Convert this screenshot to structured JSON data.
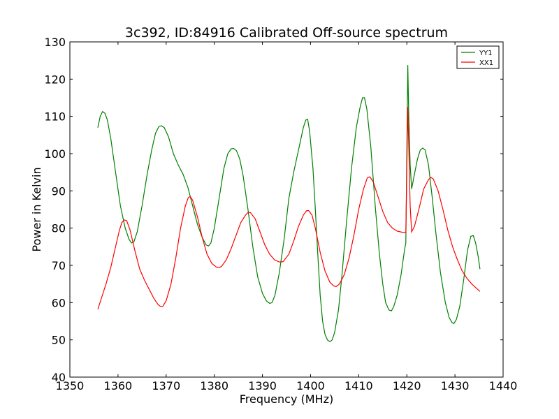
{
  "chart_data": {
    "type": "line",
    "title": "3c392, ID:84916 Calibrated Off-source spectrum",
    "xlabel": "Frequency (MHz)",
    "ylabel": "Power in Kelvin",
    "xlim": [
      1350,
      1440
    ],
    "ylim": [
      40,
      130
    ],
    "xticks": [
      1350,
      1360,
      1370,
      1380,
      1390,
      1400,
      1410,
      1420,
      1430,
      1440
    ],
    "yticks": [
      40,
      50,
      60,
      70,
      80,
      90,
      100,
      110,
      120,
      130
    ],
    "grid": false,
    "legend_position": "top-right",
    "series": [
      {
        "name": "YY1",
        "color": "#008000",
        "points": [
          [
            1355.8,
            107
          ],
          [
            1356.3,
            110
          ],
          [
            1356.8,
            111.3
          ],
          [
            1357.3,
            110.8
          ],
          [
            1357.8,
            109
          ],
          [
            1358.5,
            104
          ],
          [
            1359.5,
            95
          ],
          [
            1360.5,
            86
          ],
          [
            1361.5,
            80
          ],
          [
            1362.3,
            77
          ],
          [
            1362.8,
            76
          ],
          [
            1363.3,
            76.3
          ],
          [
            1364,
            79
          ],
          [
            1365,
            86
          ],
          [
            1366,
            94
          ],
          [
            1367,
            101
          ],
          [
            1367.8,
            105.5
          ],
          [
            1368.5,
            107.3
          ],
          [
            1369,
            107.5
          ],
          [
            1369.6,
            107
          ],
          [
            1370.5,
            104.5
          ],
          [
            1371.5,
            100
          ],
          [
            1372.5,
            97
          ],
          [
            1373.5,
            94.5
          ],
          [
            1374.5,
            91
          ],
          [
            1375.5,
            86
          ],
          [
            1376.5,
            81
          ],
          [
            1377.5,
            77.5
          ],
          [
            1378.3,
            75.5
          ],
          [
            1378.8,
            75.2
          ],
          [
            1379.3,
            76
          ],
          [
            1380,
            80
          ],
          [
            1381,
            88
          ],
          [
            1382,
            96
          ],
          [
            1382.8,
            100
          ],
          [
            1383.5,
            101.3
          ],
          [
            1384,
            101.4
          ],
          [
            1384.6,
            100.8
          ],
          [
            1385.3,
            98.5
          ],
          [
            1386,
            94
          ],
          [
            1387,
            85
          ],
          [
            1388,
            75
          ],
          [
            1389,
            67
          ],
          [
            1390,
            62.5
          ],
          [
            1390.8,
            60.5
          ],
          [
            1391.5,
            59.8
          ],
          [
            1392,
            60
          ],
          [
            1392.6,
            62
          ],
          [
            1393.5,
            68
          ],
          [
            1394.5,
            77
          ],
          [
            1395.5,
            88
          ],
          [
            1396.5,
            95
          ],
          [
            1397.5,
            101
          ],
          [
            1398.5,
            107
          ],
          [
            1399,
            109
          ],
          [
            1399.4,
            109.2
          ],
          [
            1399.8,
            106
          ],
          [
            1400.5,
            96
          ],
          [
            1401,
            85
          ],
          [
            1401.5,
            73
          ],
          [
            1402,
            62
          ],
          [
            1402.5,
            55
          ],
          [
            1403,
            51.5
          ],
          [
            1403.5,
            50
          ],
          [
            1404,
            49.5
          ],
          [
            1404.5,
            50
          ],
          [
            1405,
            52
          ],
          [
            1405.8,
            58
          ],
          [
            1406.5,
            67
          ],
          [
            1407.5,
            82
          ],
          [
            1408.5,
            96
          ],
          [
            1409.5,
            107
          ],
          [
            1410.3,
            112.5
          ],
          [
            1410.8,
            115
          ],
          [
            1411.2,
            115
          ],
          [
            1411.7,
            112
          ],
          [
            1412.5,
            102
          ],
          [
            1413.5,
            85
          ],
          [
            1414.3,
            73
          ],
          [
            1415,
            65
          ],
          [
            1415.6,
            60
          ],
          [
            1416.3,
            58
          ],
          [
            1416.8,
            57.8
          ],
          [
            1417.3,
            59
          ],
          [
            1418,
            62
          ],
          [
            1418.8,
            67.5
          ],
          [
            1419.5,
            74
          ],
          [
            1419.8,
            76
          ],
          [
            1420,
            100
          ],
          [
            1420.2,
            123.8
          ],
          [
            1420.4,
            110
          ],
          [
            1420.7,
            97
          ],
          [
            1421,
            90.5
          ],
          [
            1421.5,
            94
          ],
          [
            1422.2,
            98.5
          ],
          [
            1422.8,
            101
          ],
          [
            1423.3,
            101.5
          ],
          [
            1423.8,
            101
          ],
          [
            1424.5,
            97
          ],
          [
            1425.3,
            88
          ],
          [
            1426,
            79
          ],
          [
            1427,
            68
          ],
          [
            1428,
            60
          ],
          [
            1428.8,
            56
          ],
          [
            1429.4,
            54.6
          ],
          [
            1429.8,
            54.4
          ],
          [
            1430.3,
            55.5
          ],
          [
            1431,
            59
          ],
          [
            1431.8,
            66
          ],
          [
            1432.6,
            74
          ],
          [
            1433.3,
            77.8
          ],
          [
            1433.8,
            78
          ],
          [
            1434.3,
            76
          ],
          [
            1434.8,
            72.5
          ],
          [
            1435.2,
            69
          ]
        ]
      },
      {
        "name": "XX1",
        "color": "#ff0000",
        "points": [
          [
            1355.8,
            58.2
          ],
          [
            1356.5,
            61
          ],
          [
            1357.5,
            65
          ],
          [
            1358.5,
            69.5
          ],
          [
            1359.5,
            75
          ],
          [
            1360.3,
            79.5
          ],
          [
            1360.8,
            81.5
          ],
          [
            1361.3,
            82.2
          ],
          [
            1361.8,
            82
          ],
          [
            1362.5,
            79.5
          ],
          [
            1363.5,
            74
          ],
          [
            1364.5,
            69
          ],
          [
            1365.5,
            66
          ],
          [
            1366.5,
            63.5
          ],
          [
            1367.5,
            61
          ],
          [
            1368.3,
            59.5
          ],
          [
            1368.8,
            59
          ],
          [
            1369.3,
            59
          ],
          [
            1370,
            60.5
          ],
          [
            1371,
            65
          ],
          [
            1372,
            72
          ],
          [
            1373,
            80
          ],
          [
            1374,
            86
          ],
          [
            1374.6,
            88.2
          ],
          [
            1375,
            88.5
          ],
          [
            1375.5,
            87.5
          ],
          [
            1376.5,
            83
          ],
          [
            1377.5,
            77.5
          ],
          [
            1378.5,
            73
          ],
          [
            1379.5,
            70.5
          ],
          [
            1380.5,
            69.5
          ],
          [
            1381,
            69.4
          ],
          [
            1381.5,
            69.7
          ],
          [
            1382.5,
            71.5
          ],
          [
            1383.5,
            74.5
          ],
          [
            1384.5,
            78
          ],
          [
            1385.5,
            81.5
          ],
          [
            1386.5,
            83.5
          ],
          [
            1387,
            84.2
          ],
          [
            1387.5,
            84.2
          ],
          [
            1388.5,
            82.5
          ],
          [
            1389.5,
            79
          ],
          [
            1390.5,
            75.5
          ],
          [
            1391.5,
            73
          ],
          [
            1392.5,
            71.5
          ],
          [
            1393.5,
            70.9
          ],
          [
            1394.3,
            71
          ],
          [
            1395.5,
            73
          ],
          [
            1396.5,
            76.5
          ],
          [
            1397.5,
            80.5
          ],
          [
            1398.5,
            83.5
          ],
          [
            1399.2,
            84.7
          ],
          [
            1399.6,
            84.7
          ],
          [
            1400.3,
            83.5
          ],
          [
            1401,
            80
          ],
          [
            1402,
            73.5
          ],
          [
            1403,
            68.5
          ],
          [
            1404,
            65.5
          ],
          [
            1404.8,
            64.5
          ],
          [
            1405.3,
            64.3
          ],
          [
            1406,
            65
          ],
          [
            1407,
            67.5
          ],
          [
            1408,
            72
          ],
          [
            1409,
            78
          ],
          [
            1410,
            85
          ],
          [
            1411,
            90.5
          ],
          [
            1411.8,
            93.5
          ],
          [
            1412.3,
            93.8
          ],
          [
            1413,
            92.5
          ],
          [
            1414,
            88.5
          ],
          [
            1415,
            84.5
          ],
          [
            1416,
            81.5
          ],
          [
            1417,
            80
          ],
          [
            1418,
            79.2
          ],
          [
            1419,
            78.9
          ],
          [
            1419.8,
            78.8
          ],
          [
            1420,
            95
          ],
          [
            1420.2,
            112.5
          ],
          [
            1420.4,
            102
          ],
          [
            1420.7,
            86
          ],
          [
            1421,
            79
          ],
          [
            1421.6,
            80.5
          ],
          [
            1422.5,
            85
          ],
          [
            1423.5,
            90.5
          ],
          [
            1424.5,
            93
          ],
          [
            1425,
            93.6
          ],
          [
            1425.5,
            93.2
          ],
          [
            1426.5,
            90
          ],
          [
            1427.5,
            85
          ],
          [
            1428.5,
            79.5
          ],
          [
            1429.5,
            75
          ],
          [
            1430.5,
            71.5
          ],
          [
            1431.5,
            68.5
          ],
          [
            1432.5,
            66.5
          ],
          [
            1433.5,
            65
          ],
          [
            1434.5,
            63.8
          ],
          [
            1435.2,
            63
          ]
        ]
      }
    ]
  }
}
